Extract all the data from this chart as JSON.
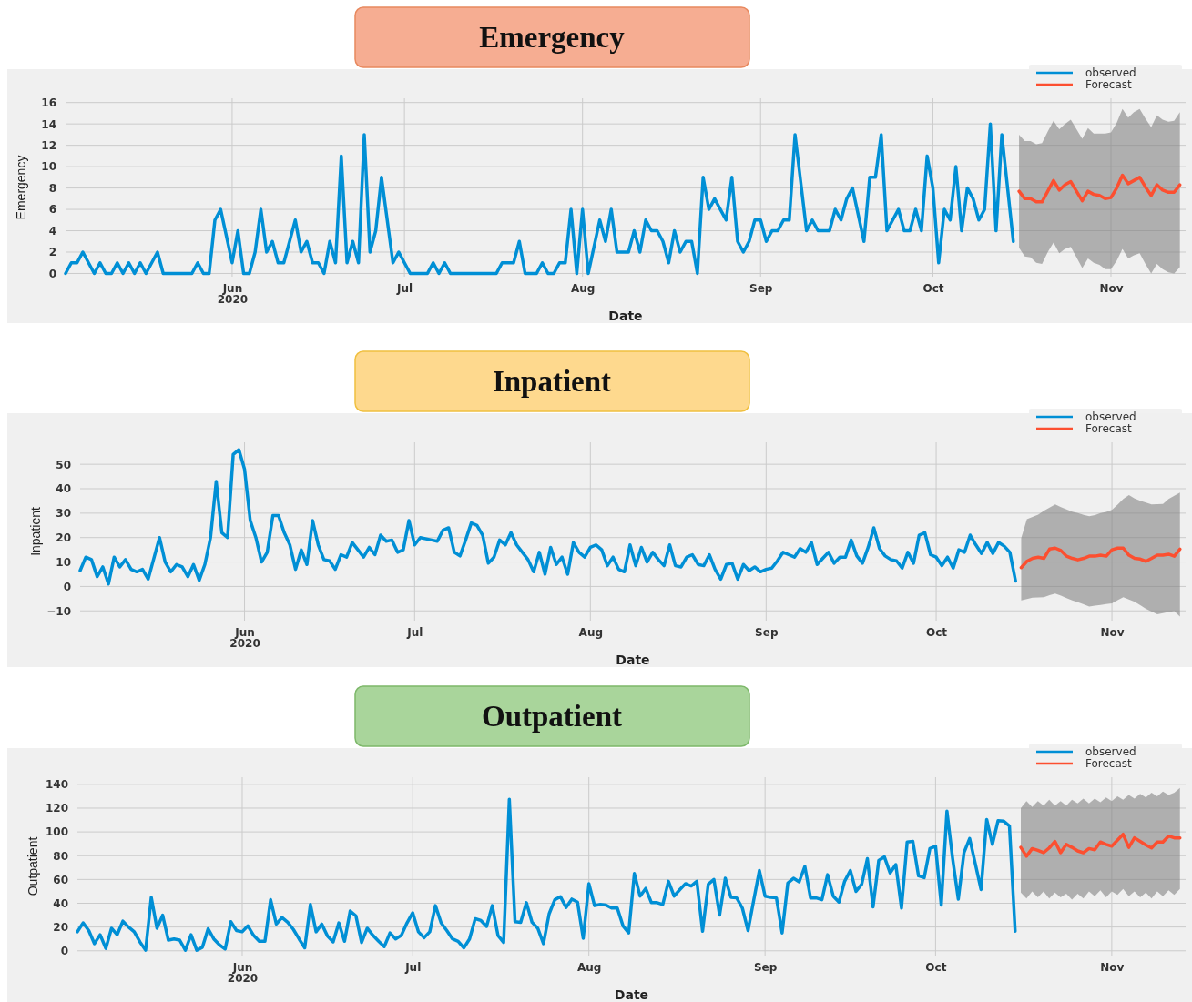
{
  "chart_data": [
    {
      "type": "line",
      "title": "Emergency",
      "xlabel": "Date",
      "ylabel": "Emergency",
      "xlim": [
        "2020-05-03",
        "2020-11-14"
      ],
      "ylim": [
        -0.3,
        16.4
      ],
      "xticks": [
        {
          "value": "2020-06-01",
          "label": "Jun\n2020"
        },
        {
          "value": "2020-07-01",
          "label": "Jul"
        },
        {
          "value": "2020-08-01",
          "label": "Aug"
        },
        {
          "value": "2020-09-01",
          "label": "Sep"
        },
        {
          "value": "2020-10-01",
          "label": "Oct"
        },
        {
          "value": "2020-11-01",
          "label": "Nov"
        }
      ],
      "yticks": [
        0,
        2,
        4,
        6,
        8,
        10,
        12,
        14,
        16
      ],
      "grid": true,
      "legend": "top right",
      "series": [
        {
          "name": "observed",
          "color": "#008fd5",
          "x": [
            "2020-05-03",
            "2020-05-04",
            "2020-05-05",
            "2020-05-06",
            "2020-05-08",
            "2020-05-09",
            "2020-05-10",
            "2020-05-11",
            "2020-05-12",
            "2020-05-13",
            "2020-05-14",
            "2020-05-15",
            "2020-05-16",
            "2020-05-17",
            "2020-05-19",
            "2020-05-20",
            "2020-05-25",
            "2020-05-26",
            "2020-05-27",
            "2020-05-28",
            "2020-05-29",
            "2020-05-30",
            "2020-06-01",
            "2020-06-02",
            "2020-06-03",
            "2020-06-04",
            "2020-06-05",
            "2020-06-06",
            "2020-06-07",
            "2020-06-08",
            "2020-06-09",
            "2020-06-10",
            "2020-06-12",
            "2020-06-13",
            "2020-06-14",
            "2020-06-15",
            "2020-06-16",
            "2020-06-17",
            "2020-06-18",
            "2020-06-19",
            "2020-06-20",
            "2020-06-21",
            "2020-06-22",
            "2020-06-23",
            "2020-06-24",
            "2020-06-25",
            "2020-06-26",
            "2020-06-27",
            "2020-06-29",
            "2020-06-30",
            "2020-07-02",
            "2020-07-05",
            "2020-07-06",
            "2020-07-07",
            "2020-07-08",
            "2020-07-09",
            "2020-07-17",
            "2020-07-18",
            "2020-07-20",
            "2020-07-21",
            "2020-07-22",
            "2020-07-24",
            "2020-07-25",
            "2020-07-26",
            "2020-07-27",
            "2020-07-28",
            "2020-07-29",
            "2020-07-30",
            "2020-07-31",
            "2020-08-01",
            "2020-08-02",
            "2020-08-04",
            "2020-08-05",
            "2020-08-06",
            "2020-08-07",
            "2020-08-09",
            "2020-08-10",
            "2020-08-11",
            "2020-08-12",
            "2020-08-13",
            "2020-08-14",
            "2020-08-15",
            "2020-08-16",
            "2020-08-17",
            "2020-08-18",
            "2020-08-19",
            "2020-08-20",
            "2020-08-21",
            "2020-08-22",
            "2020-08-23",
            "2020-08-24",
            "2020-08-25",
            "2020-08-26",
            "2020-08-27",
            "2020-08-28",
            "2020-08-29",
            "2020-08-30",
            "2020-08-31",
            "2020-09-01",
            "2020-09-02",
            "2020-09-03",
            "2020-09-04",
            "2020-09-05",
            "2020-09-06",
            "2020-09-07",
            "2020-09-09",
            "2020-09-10",
            "2020-09-11",
            "2020-09-13",
            "2020-09-14",
            "2020-09-15",
            "2020-09-16",
            "2020-09-17",
            "2020-09-19",
            "2020-09-20",
            "2020-09-21",
            "2020-09-22",
            "2020-09-23",
            "2020-09-25",
            "2020-09-26",
            "2020-09-27",
            "2020-09-28",
            "2020-09-29",
            "2020-09-30",
            "2020-10-01",
            "2020-10-02",
            "2020-10-03",
            "2020-10-04",
            "2020-10-05",
            "2020-10-06",
            "2020-10-07",
            "2020-10-08",
            "2020-10-09",
            "2020-10-10",
            "2020-10-11",
            "2020-10-12",
            "2020-10-13",
            "2020-10-15"
          ],
          "values": [
            0,
            1,
            1,
            2,
            0,
            1,
            0,
            0,
            1,
            0,
            1,
            0,
            1,
            0,
            2,
            0,
            0,
            1,
            0,
            0,
            5,
            6,
            1,
            4,
            0,
            0,
            2,
            6,
            2,
            3,
            1,
            1,
            5,
            2,
            3,
            1,
            1,
            0,
            3,
            1,
            11,
            1,
            3,
            1,
            13,
            2,
            4,
            9,
            1,
            2,
            0,
            0,
            1,
            0,
            1,
            0,
            0,
            1,
            1,
            3,
            0,
            0,
            1,
            0,
            0,
            1,
            1,
            6,
            0,
            6,
            0,
            5,
            3,
            6,
            2,
            2,
            4,
            2,
            5,
            4,
            4,
            3,
            1,
            4,
            2,
            3,
            3,
            0,
            9,
            6,
            7,
            6,
            5,
            9,
            3,
            2,
            3,
            5,
            5,
            3,
            4,
            4,
            5,
            5,
            13,
            4,
            5,
            4,
            4,
            6,
            5,
            7,
            8,
            3,
            9,
            9,
            13,
            4,
            6,
            4,
            4,
            6,
            4,
            11,
            8,
            1,
            6,
            5,
            10,
            4,
            8,
            7,
            5,
            6,
            14,
            4,
            13,
            3
          ]
        },
        {
          "name": "Forecast",
          "color": "#fc4f30",
          "x": [
            "2020-10-16",
            "2020-10-17",
            "2020-10-18",
            "2020-10-19",
            "2020-10-20",
            "2020-10-21",
            "2020-10-22",
            "2020-10-23",
            "2020-10-24",
            "2020-10-25",
            "2020-10-26",
            "2020-10-27",
            "2020-10-28",
            "2020-10-29",
            "2020-10-30",
            "2020-10-31",
            "2020-11-01",
            "2020-11-02",
            "2020-11-03",
            "2020-11-04",
            "2020-11-05",
            "2020-11-06",
            "2020-11-07",
            "2020-11-08",
            "2020-11-09",
            "2020-11-10",
            "2020-11-11",
            "2020-11-12",
            "2020-11-13"
          ],
          "values": [
            7.7,
            7.0,
            7.0,
            6.7,
            6.7,
            7.7,
            8.7,
            7.8,
            8.3,
            8.6,
            7.7,
            6.8,
            7.7,
            7.4,
            7.3,
            7.0,
            7.1,
            8.0,
            9.2,
            8.4,
            8.7,
            9.0,
            8.1,
            7.3,
            8.3,
            7.8,
            7.6,
            7.6,
            8.3
          ],
          "lower": [
            2.4,
            1.6,
            1.5,
            1.0,
            0.9,
            2.0,
            2.9,
            1.9,
            2.3,
            2.5,
            1.5,
            0.5,
            1.4,
            1.0,
            0.8,
            0.4,
            0.4,
            1.2,
            2.3,
            1.4,
            1.7,
            1.9,
            0.9,
            0.0,
            0.9,
            0.4,
            0.1,
            0.0,
            0.6
          ],
          "upper": [
            13.0,
            12.4,
            12.4,
            12.1,
            12.2,
            13.3,
            14.3,
            13.5,
            14.0,
            14.4,
            13.5,
            12.6,
            13.6,
            13.1,
            13.1,
            13.1,
            13.2,
            14.1,
            15.4,
            14.6,
            15.1,
            15.4,
            14.5,
            13.7,
            14.8,
            14.4,
            14.2,
            14.3,
            15.1
          ]
        }
      ]
    },
    {
      "type": "line",
      "title": "Inpatient",
      "xlabel": "Date",
      "ylabel": "Inpatient",
      "xlim": [
        "2020-05-03",
        "2020-11-14"
      ],
      "ylim": [
        -14,
        59
      ],
      "xticks": [
        {
          "value": "2020-06-01",
          "label": "Jun\n2020"
        },
        {
          "value": "2020-07-01",
          "label": "Jul"
        },
        {
          "value": "2020-08-01",
          "label": "Aug"
        },
        {
          "value": "2020-09-01",
          "label": "Sep"
        },
        {
          "value": "2020-10-01",
          "label": "Oct"
        },
        {
          "value": "2020-11-01",
          "label": "Nov"
        }
      ],
      "yticks": [
        -10,
        0,
        10,
        20,
        30,
        40,
        50
      ],
      "grid": true,
      "legend": "top right",
      "series": [
        {
          "name": "observed",
          "color": "#008fd5",
          "x": [
            "2020-05-03",
            "2020-05-04",
            "2020-05-05",
            "2020-05-06",
            "2020-05-07",
            "2020-05-08",
            "2020-05-09",
            "2020-05-10",
            "2020-05-11",
            "2020-05-12",
            "2020-05-13",
            "2020-05-14",
            "2020-05-15",
            "2020-05-17",
            "2020-05-18",
            "2020-05-19",
            "2020-05-20",
            "2020-05-21",
            "2020-05-22",
            "2020-05-23",
            "2020-05-24",
            "2020-05-25",
            "2020-05-26",
            "2020-05-27",
            "2020-05-28",
            "2020-05-29",
            "2020-05-30",
            "2020-05-31",
            "2020-06-01",
            "2020-06-02",
            "2020-06-03",
            "2020-06-04",
            "2020-06-05",
            "2020-06-06",
            "2020-06-07",
            "2020-06-08",
            "2020-06-09",
            "2020-06-10",
            "2020-06-11",
            "2020-06-12",
            "2020-06-13",
            "2020-06-14",
            "2020-06-15",
            "2020-06-16",
            "2020-06-17",
            "2020-06-18",
            "2020-06-19",
            "2020-06-20",
            "2020-06-21",
            "2020-06-22",
            "2020-06-23",
            "2020-06-24",
            "2020-06-25",
            "2020-06-26",
            "2020-06-27",
            "2020-06-28",
            "2020-06-29",
            "2020-06-30",
            "2020-07-01",
            "2020-07-02",
            "2020-07-04",
            "2020-07-05",
            "2020-07-06",
            "2020-07-07",
            "2020-07-08",
            "2020-07-09",
            "2020-07-10",
            "2020-07-11",
            "2020-07-12",
            "2020-07-13",
            "2020-07-14",
            "2020-07-15",
            "2020-07-16",
            "2020-07-17",
            "2020-07-18",
            "2020-07-19",
            "2020-07-20",
            "2020-07-21",
            "2020-07-22",
            "2020-07-23",
            "2020-07-24",
            "2020-07-25",
            "2020-07-26",
            "2020-07-27",
            "2020-07-28",
            "2020-07-29",
            "2020-07-30",
            "2020-07-31",
            "2020-08-01",
            "2020-08-02",
            "2020-08-03",
            "2020-08-04",
            "2020-08-05",
            "2020-08-06",
            "2020-08-07",
            "2020-08-08",
            "2020-08-09",
            "2020-08-10",
            "2020-08-11",
            "2020-08-12",
            "2020-08-13",
            "2020-08-14",
            "2020-08-15",
            "2020-08-16",
            "2020-08-17",
            "2020-08-18",
            "2020-08-19",
            "2020-08-20",
            "2020-08-21",
            "2020-08-22",
            "2020-08-23",
            "2020-08-24",
            "2020-08-25",
            "2020-08-26",
            "2020-08-27",
            "2020-08-28",
            "2020-08-29",
            "2020-08-30",
            "2020-08-31",
            "2020-09-01",
            "2020-09-02",
            "2020-09-03",
            "2020-09-04",
            "2020-09-05",
            "2020-09-06",
            "2020-09-07",
            "2020-09-08",
            "2020-09-09",
            "2020-09-10",
            "2020-09-11",
            "2020-09-12",
            "2020-09-13",
            "2020-09-14",
            "2020-09-15",
            "2020-09-16",
            "2020-09-17",
            "2020-09-18",
            "2020-09-19",
            "2020-09-20",
            "2020-09-21",
            "2020-09-22",
            "2020-09-23",
            "2020-09-24",
            "2020-09-25",
            "2020-09-26",
            "2020-09-27",
            "2020-09-28",
            "2020-09-29",
            "2020-09-30",
            "2020-10-01",
            "2020-10-02",
            "2020-10-03",
            "2020-10-04",
            "2020-10-05",
            "2020-10-06",
            "2020-10-07",
            "2020-10-08",
            "2020-10-09",
            "2020-10-10",
            "2020-10-11",
            "2020-10-12",
            "2020-10-13",
            "2020-10-14",
            "2020-10-15"
          ],
          "values": [
            6.5,
            12,
            11,
            4,
            8,
            1,
            12,
            8,
            11,
            7,
            6,
            7,
            3,
            20,
            10,
            6,
            9,
            8,
            4,
            9,
            2.5,
            9,
            20,
            43,
            22,
            20,
            54,
            56,
            48,
            27,
            20,
            10,
            14,
            29,
            29,
            22,
            17,
            7,
            15,
            9,
            27,
            17,
            11,
            10.5,
            7,
            13,
            12,
            18,
            15,
            12,
            16,
            13,
            21,
            18.5,
            19,
            14,
            15,
            27,
            17,
            20,
            19,
            18.5,
            23,
            24,
            14,
            12.5,
            19,
            26,
            25,
            21,
            9.5,
            12,
            19,
            17,
            22,
            17,
            14,
            11,
            6,
            14,
            5,
            16,
            9,
            12,
            5,
            18,
            14,
            12,
            16,
            17,
            15,
            8.5,
            12,
            7,
            6,
            17,
            8.5,
            16,
            10,
            14,
            11,
            8.5,
            17,
            8.5,
            8,
            12,
            13,
            9,
            8.5,
            13,
            7,
            3,
            9,
            9.5,
            3,
            9,
            6.5,
            8,
            6,
            7,
            7.5,
            10.5,
            14,
            13,
            12,
            15.5,
            14,
            18,
            9,
            11.5,
            14,
            9.5,
            12,
            12,
            19,
            12.5,
            9.5,
            16,
            24,
            15.5,
            12.5,
            11,
            10.5,
            7.5,
            14,
            9.5,
            21,
            22,
            13,
            12,
            8.5,
            12,
            7.5,
            15,
            14,
            21,
            17,
            13.5,
            18,
            13.5,
            18,
            16.5,
            14,
            2.2
          ]
        },
        {
          "name": "Forecast",
          "color": "#fc4f30",
          "x": [
            "2020-10-16",
            "2020-10-17",
            "2020-10-18",
            "2020-10-19",
            "2020-10-20",
            "2020-10-21",
            "2020-10-22",
            "2020-10-23",
            "2020-10-24",
            "2020-10-25",
            "2020-10-26",
            "2020-10-27",
            "2020-10-28",
            "2020-10-29",
            "2020-10-30",
            "2020-10-31",
            "2020-11-01",
            "2020-11-02",
            "2020-11-03",
            "2020-11-04",
            "2020-11-05",
            "2020-11-06",
            "2020-11-07",
            "2020-11-08",
            "2020-11-09",
            "2020-11-10",
            "2020-11-11",
            "2020-11-12",
            "2020-11-13"
          ],
          "values": [
            7.7,
            10.3,
            11.5,
            12,
            11.5,
            15.3,
            15.7,
            14.7,
            12.4,
            11.5,
            10.9,
            11.5,
            12.4,
            12.4,
            12.8,
            12.4,
            15,
            15.7,
            15.7,
            12.8,
            11.5,
            11.2,
            10.3,
            11.5,
            12.8,
            12.8,
            13.2,
            12.4,
            15.3
          ],
          "lower": [
            -5.7,
            -5.2,
            -4.6,
            -4.5,
            -4.4,
            -3.6,
            -2.9,
            -3.8,
            -4.8,
            -5.7,
            -6.5,
            -7.3,
            -8.2,
            -7.9,
            -7.6,
            -7.2,
            -6.9,
            -5.6,
            -4.4,
            -5.3,
            -6.3,
            -7.7,
            -9.2,
            -10.3,
            -11.4,
            -10.9,
            -10.5,
            -10.1,
            -12.3
          ],
          "upper": [
            19.8,
            27.5,
            28.5,
            29.4,
            31,
            32.3,
            33.6,
            32.5,
            31.5,
            30.6,
            30,
            29.3,
            28.7,
            29.2,
            30,
            30.5,
            31.3,
            33.5,
            35.8,
            37.4,
            36,
            35.1,
            34.3,
            33.6,
            33.7,
            33.8,
            35.8,
            37.1,
            38.4
          ]
        }
      ]
    },
    {
      "type": "line",
      "title": "Outpatient",
      "xlabel": "Date",
      "ylabel": "Outpatient",
      "xlim": [
        "2020-05-03",
        "2020-11-14"
      ],
      "ylim": [
        -4,
        146
      ],
      "xticks": [
        {
          "value": "2020-06-01",
          "label": "Jun\n2020"
        },
        {
          "value": "2020-07-01",
          "label": "Jul"
        },
        {
          "value": "2020-08-01",
          "label": "Aug"
        },
        {
          "value": "2020-09-01",
          "label": "Sep"
        },
        {
          "value": "2020-10-01",
          "label": "Oct"
        },
        {
          "value": "2020-11-01",
          "label": "Nov"
        }
      ],
      "yticks": [
        0,
        20,
        40,
        60,
        80,
        100,
        120,
        140
      ],
      "grid": true,
      "legend": "top right",
      "series": [
        {
          "name": "observed",
          "color": "#008fd5",
          "x": [
            "2020-05-03",
            "2020-05-04",
            "2020-05-05",
            "2020-05-06",
            "2020-05-07",
            "2020-05-08",
            "2020-05-09",
            "2020-05-10",
            "2020-05-11",
            "2020-05-12",
            "2020-05-13",
            "2020-05-14",
            "2020-05-15",
            "2020-05-16",
            "2020-05-17",
            "2020-05-18",
            "2020-05-19",
            "2020-05-20",
            "2020-05-21",
            "2020-05-22",
            "2020-05-23",
            "2020-05-24",
            "2020-05-25",
            "2020-05-26",
            "2020-05-27",
            "2020-05-28",
            "2020-05-29",
            "2020-05-30",
            "2020-05-31",
            "2020-06-01",
            "2020-06-02",
            "2020-06-03",
            "2020-06-04",
            "2020-06-05",
            "2020-06-06",
            "2020-06-07",
            "2020-06-08",
            "2020-06-09",
            "2020-06-10",
            "2020-06-11",
            "2020-06-12",
            "2020-06-13",
            "2020-06-14",
            "2020-06-15",
            "2020-06-16",
            "2020-06-17",
            "2020-06-18",
            "2020-06-19",
            "2020-06-20",
            "2020-06-21",
            "2020-06-22",
            "2020-06-23",
            "2020-06-24",
            "2020-06-25",
            "2020-06-26",
            "2020-06-27",
            "2020-06-28",
            "2020-06-29",
            "2020-06-30",
            "2020-07-01",
            "2020-07-02",
            "2020-07-03",
            "2020-07-04",
            "2020-07-05",
            "2020-07-06",
            "2020-07-07",
            "2020-07-08",
            "2020-07-09",
            "2020-07-10",
            "2020-07-11",
            "2020-07-12",
            "2020-07-13",
            "2020-07-14",
            "2020-07-15",
            "2020-07-16",
            "2020-07-17",
            "2020-07-18",
            "2020-07-19",
            "2020-07-20",
            "2020-07-21",
            "2020-07-22",
            "2020-07-23",
            "2020-07-24",
            "2020-07-25",
            "2020-07-26",
            "2020-07-27",
            "2020-07-28",
            "2020-07-29",
            "2020-07-30",
            "2020-07-31",
            "2020-08-01",
            "2020-08-02",
            "2020-08-03",
            "2020-08-04",
            "2020-08-05",
            "2020-08-06",
            "2020-08-07",
            "2020-08-08",
            "2020-08-09",
            "2020-08-10",
            "2020-08-11",
            "2020-08-12",
            "2020-08-13",
            "2020-08-14",
            "2020-08-15",
            "2020-08-16",
            "2020-08-17",
            "2020-08-18",
            "2020-08-19",
            "2020-08-20",
            "2020-08-21",
            "2020-08-22",
            "2020-08-23",
            "2020-08-24",
            "2020-08-25",
            "2020-08-26",
            "2020-08-27",
            "2020-08-28",
            "2020-08-29",
            "2020-08-30",
            "2020-08-31",
            "2020-09-01",
            "2020-09-02",
            "2020-09-03",
            "2020-09-04",
            "2020-09-05",
            "2020-09-06",
            "2020-09-07",
            "2020-09-08",
            "2020-09-09",
            "2020-09-10",
            "2020-09-11",
            "2020-09-12",
            "2020-09-13",
            "2020-09-14",
            "2020-09-15",
            "2020-09-16",
            "2020-09-17",
            "2020-09-18",
            "2020-09-19",
            "2020-09-20",
            "2020-09-21",
            "2020-09-22",
            "2020-09-23",
            "2020-09-24",
            "2020-09-25",
            "2020-09-26",
            "2020-09-27",
            "2020-09-28",
            "2020-09-29",
            "2020-09-30",
            "2020-10-01",
            "2020-10-02",
            "2020-10-03",
            "2020-10-04",
            "2020-10-05",
            "2020-10-06",
            "2020-10-07",
            "2020-10-08",
            "2020-10-09",
            "2020-10-10",
            "2020-10-11",
            "2020-10-12",
            "2020-10-13",
            "2020-10-14",
            "2020-10-15"
          ],
          "values": [
            16,
            23.5,
            17,
            6,
            13.5,
            2,
            19,
            13.5,
            25,
            20,
            16,
            7.5,
            0.5,
            45,
            19,
            30,
            9,
            10,
            9,
            0.5,
            13.5,
            0.5,
            3,
            18.5,
            10,
            5,
            1.5,
            24.5,
            17,
            16,
            21,
            13,
            8,
            8,
            43,
            22.5,
            28,
            24,
            18,
            10,
            2.5,
            39,
            16,
            22.5,
            12.5,
            7.5,
            23.5,
            8,
            33.5,
            29.5,
            7,
            19,
            13,
            8,
            3.5,
            15,
            10,
            13,
            23.5,
            32,
            16,
            11,
            16,
            38,
            23.5,
            17,
            10,
            8,
            2.5,
            10,
            27,
            25.5,
            20.5,
            38,
            13,
            7,
            127.5,
            24.5,
            24,
            40.5,
            24,
            19,
            6,
            31,
            43,
            45.5,
            36.5,
            43.5,
            41,
            10.5,
            56.5,
            38,
            39,
            38.5,
            36,
            36,
            21,
            15,
            65,
            46,
            52.5,
            40.5,
            40.5,
            39,
            58.5,
            46,
            51.5,
            56.5,
            54.5,
            58.5,
            16.5,
            56,
            60,
            30,
            61,
            45,
            44.5,
            36,
            17,
            42.5,
            67.5,
            46,
            45,
            44.5,
            15,
            57,
            61,
            58,
            71,
            44.5,
            44.5,
            43,
            64,
            46,
            41,
            58.5,
            67.5,
            50,
            56,
            77.5,
            37,
            76,
            79,
            65.5,
            72.5,
            36,
            91.5,
            92,
            63,
            61.5,
            86,
            88,
            38.5,
            117.5,
            77.5,
            43.5,
            82.5,
            94.5,
            73,
            51.5,
            110.5,
            89.5,
            109.5,
            109,
            105,
            16.5
          ]
        },
        {
          "name": "Forecast",
          "color": "#fc4f30",
          "x": [
            "2020-10-16",
            "2020-10-17",
            "2020-10-18",
            "2020-10-19",
            "2020-10-20",
            "2020-10-21",
            "2020-10-22",
            "2020-10-23",
            "2020-10-24",
            "2020-10-25",
            "2020-10-26",
            "2020-10-27",
            "2020-10-28",
            "2020-10-29",
            "2020-10-30",
            "2020-10-31",
            "2020-11-01",
            "2020-11-02",
            "2020-11-03",
            "2020-11-04",
            "2020-11-05",
            "2020-11-06",
            "2020-11-07",
            "2020-11-08",
            "2020-11-09",
            "2020-11-10",
            "2020-11-11",
            "2020-11-12",
            "2020-11-13"
          ],
          "values": [
            87,
            79.5,
            86,
            84.5,
            82.5,
            86.5,
            92,
            82.5,
            89.5,
            87,
            84,
            82.5,
            86,
            85,
            91.5,
            89.5,
            88,
            93,
            98,
            87,
            95,
            92,
            89,
            86.5,
            91.5,
            91.5,
            96.5,
            95,
            95
          ],
          "lower": [
            49,
            44,
            50,
            45,
            50,
            44,
            49,
            45,
            48,
            43,
            48,
            44,
            50,
            46,
            51,
            45,
            50,
            47,
            52,
            46,
            50,
            45,
            49,
            44,
            50,
            46,
            51,
            47,
            52
          ],
          "upper": [
            120,
            126,
            121,
            126,
            122,
            127,
            122,
            126,
            122,
            127,
            124,
            128,
            124,
            128,
            125,
            129,
            126,
            130,
            127,
            131,
            128,
            132,
            129,
            133,
            130,
            134,
            131,
            133,
            137
          ]
        }
      ]
    }
  ]
}
